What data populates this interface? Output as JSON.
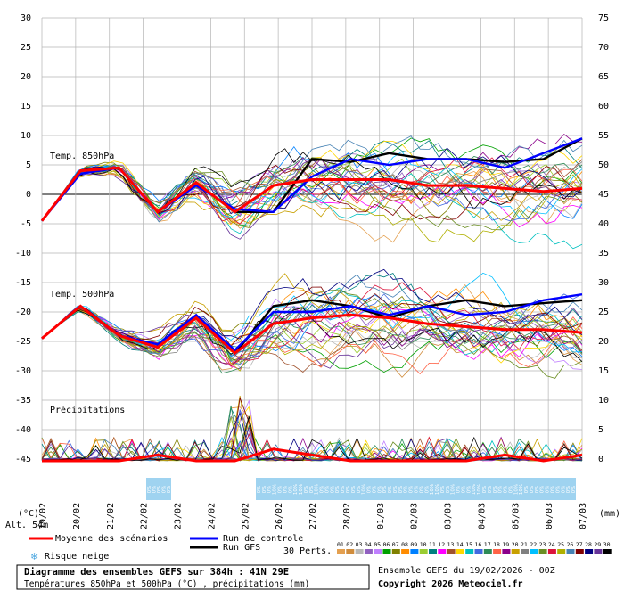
{
  "chart_data": {
    "type": "line",
    "title": "Diagramme des ensembles GEFS sur 384h : 41N 29E",
    "subtitle": "Températures 850hPa et 500hPa (°C) , précipitations (mm)",
    "source": "Ensemble GEFS du 19/02/2026 - 00Z",
    "copyright": "Copyright 2026 Meteociel.fr",
    "altitude": "Alt. 54m",
    "left_axis_unit": "(°C)",
    "right_axis_unit": "(mm)",
    "left_ticks": [
      30,
      25,
      20,
      15,
      10,
      5,
      0,
      -5,
      -10,
      -15,
      -20,
      -25,
      -30,
      -35,
      -40,
      -45
    ],
    "right_ticks": [
      75,
      70,
      65,
      60,
      55,
      50,
      45,
      40,
      35,
      30,
      25,
      20,
      15,
      10,
      5,
      0
    ],
    "ylim": [
      -45,
      30
    ],
    "x_ticks": [
      "19/02",
      "20/02",
      "21/02",
      "22/02",
      "23/02",
      "24/02",
      "25/02",
      "26/02",
      "27/02",
      "28/02",
      "01/03",
      "02/03",
      "03/03",
      "04/03",
      "05/03",
      "06/03",
      "07/03"
    ],
    "sections": {
      "t850": "Temp. 850hPa",
      "t500": "Temp. 500hPa",
      "precip": "Précipitations"
    },
    "legend": {
      "mean": "Moyenne des scénarios",
      "control": "Run de controle",
      "gfs": "Run GFS",
      "snow": "Risque neige",
      "perts": "30 Perts."
    },
    "series": [
      {
        "name": "Moyenne des scénarios",
        "color": "#ff0000",
        "t850": [
          -4.5,
          4,
          4.5,
          -3,
          2,
          -3,
          1.5,
          2.5,
          2.5,
          2.5,
          1.5,
          1.5,
          1,
          0.5,
          1
        ],
        "t500": [
          -24.5,
          -19,
          -24,
          -26,
          -21,
          -27,
          -22,
          -21,
          -20.5,
          -21,
          -22,
          -22.5,
          -23,
          -23,
          -23.5
        ],
        "precip": [
          0,
          0,
          0,
          1,
          0,
          0,
          2,
          1,
          0,
          0,
          0,
          0,
          1,
          0,
          1
        ]
      },
      {
        "name": "Run de controle",
        "color": "#0000ff",
        "t850": [
          -4.5,
          3.5,
          4.5,
          -3,
          1.5,
          -2.5,
          -3,
          3,
          6,
          5,
          6,
          6,
          4.5,
          7,
          9.5
        ],
        "t500": [
          -24.5,
          -19,
          -24,
          -25.5,
          -20.5,
          -26.5,
          -20,
          -20,
          -19,
          -20.5,
          -19,
          -20.5,
          -20,
          -18,
          -17
        ]
      },
      {
        "name": "Run GFS",
        "color": "#000000",
        "t850": [
          -4.5,
          4,
          4.5,
          -3,
          2,
          -3,
          -3,
          6,
          5.5,
          7,
          6,
          6,
          5.5,
          6,
          9.5
        ],
        "t500": [
          -24.5,
          -19,
          -24,
          -26,
          -21,
          -27,
          -19,
          -18,
          -19,
          -21,
          -19,
          -18,
          -19,
          -18.5,
          -18
        ]
      }
    ],
    "perturbations": [
      "01",
      "02",
      "03",
      "04",
      "05",
      "06",
      "07",
      "08",
      "09",
      "10",
      "11",
      "12",
      "13",
      "14",
      "15",
      "16",
      "17",
      "18",
      "19",
      "20",
      "21",
      "22",
      "23",
      "24",
      "25",
      "26",
      "27",
      "28",
      "29",
      "30"
    ],
    "perturbation_colors": [
      "#e4a050",
      "#d08c3c",
      "#b8b8b8",
      "#9060c0",
      "#c080ff",
      "#00a000",
      "#808000",
      "#ff8c00",
      "#0080ff",
      "#9acd32",
      "#008080",
      "#ff00ff",
      "#a0522d",
      "#ffd700",
      "#00c0c0",
      "#4169e1",
      "#2e8b57",
      "#ff6347",
      "#8b008b",
      "#c8a000",
      "#808080",
      "#00bfff",
      "#6b8e23",
      "#dc143c",
      "#b0b000",
      "#4682b4",
      "#800000",
      "#000080",
      "#663399",
      "#000000"
    ],
    "snow_risk": [
      {
        "labels": [
          "0%",
          "0%",
          "0%",
          "0%",
          "0%"
        ]
      },
      {
        "labels": [
          "0%",
          "0%",
          "0%",
          "10%",
          "0%",
          "0%",
          "0%",
          "10%",
          "10%",
          "0%",
          "0%",
          "10%",
          "0%",
          "0%",
          "0%",
          "0%",
          "0%",
          "0%",
          "0%",
          "0%",
          "10%",
          "0%",
          "0%",
          "0%",
          "0%",
          "0%",
          "0%",
          "0%",
          "0%",
          "0%",
          "0%",
          "0%",
          "0%",
          "10%",
          "10%",
          "0%",
          "0%",
          "10%",
          "0%",
          "0%",
          "0%",
          "10%",
          "10%",
          "0%",
          "0%",
          "0%",
          "0%",
          "0%",
          "0%",
          "10%",
          "10%",
          "0%",
          "0%",
          "0%",
          "0%",
          "0%",
          "0%",
          "0%",
          "0%",
          "0%",
          "0%"
        ]
      }
    ]
  },
  "colors": {
    "mean": "#ff0000",
    "control": "#0000ff",
    "gfs": "#000000",
    "grid": "#b4b4b4",
    "snow_bg": "#9fd3f0"
  }
}
